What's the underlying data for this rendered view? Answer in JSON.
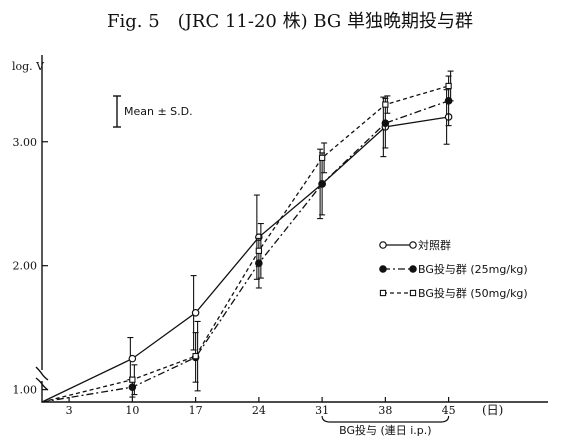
{
  "chart_data": {
    "type": "line",
    "title": "Fig. 5　(JRC 11-20 株) BG 単独晩期投与群",
    "ylabel": "log. V",
    "xlabel": "(日)",
    "x": [
      3,
      10,
      17,
      24,
      31,
      38,
      45
    ],
    "x_tick_labels": [
      "3",
      "10",
      "17",
      "24",
      "31",
      "38",
      "45"
    ],
    "y_ticks": [
      1.0,
      2.0,
      3.0
    ],
    "y_tick_labels": [
      "1.00",
      "2.00",
      "3.00"
    ],
    "ylim": [
      0.9,
      3.7
    ],
    "xlim": [
      0,
      56
    ],
    "error_key_label": "Mean ± S.D.",
    "treatment_label": "BG投与 (連日 i.p.)",
    "treatment_range": [
      31,
      45
    ],
    "grid": false,
    "legend_position": "right",
    "series": [
      {
        "name": "対照群",
        "line_style": "solid",
        "marker": "open-circle",
        "points": [
          {
            "x": 0,
            "y": 0.9,
            "sd": 0
          },
          {
            "x": 10,
            "y": 1.25,
            "sd": 0.17
          },
          {
            "x": 17,
            "y": 1.62,
            "sd": 0.3
          },
          {
            "x": 24,
            "y": 2.23,
            "sd": 0.34
          },
          {
            "x": 31,
            "y": 2.66,
            "sd": 0.28
          },
          {
            "x": 38,
            "y": 3.12,
            "sd": 0.24
          },
          {
            "x": 45,
            "y": 3.2,
            "sd": 0.22
          }
        ]
      },
      {
        "name": "BG投与群 (25mg/kg)",
        "line_style": "dash-dot",
        "marker": "filled-circle",
        "points": [
          {
            "x": 0,
            "y": 0.9,
            "sd": 0
          },
          {
            "x": 10,
            "y": 1.02,
            "sd": 0.08
          },
          {
            "x": 17,
            "y": 1.26,
            "sd": 0.2
          },
          {
            "x": 24,
            "y": 2.02,
            "sd": 0.2
          },
          {
            "x": 31,
            "y": 2.66,
            "sd": 0.25
          },
          {
            "x": 38,
            "y": 3.15,
            "sd": 0.2
          },
          {
            "x": 45,
            "y": 3.33,
            "sd": 0.2
          }
        ]
      },
      {
        "name": "BG投与群 (50mg/kg)",
        "line_style": "dashed",
        "marker": "open-square",
        "points": [
          {
            "x": 0,
            "y": 0.9,
            "sd": 0
          },
          {
            "x": 10,
            "y": 1.08,
            "sd": 0.12
          },
          {
            "x": 17,
            "y": 1.27,
            "sd": 0.28
          },
          {
            "x": 24,
            "y": 2.12,
            "sd": 0.22
          },
          {
            "x": 31,
            "y": 2.87,
            "sd": 0.12
          },
          {
            "x": 38,
            "y": 3.3,
            "sd": 0.07
          },
          {
            "x": 45,
            "y": 3.45,
            "sd": 0.12
          }
        ]
      }
    ]
  }
}
